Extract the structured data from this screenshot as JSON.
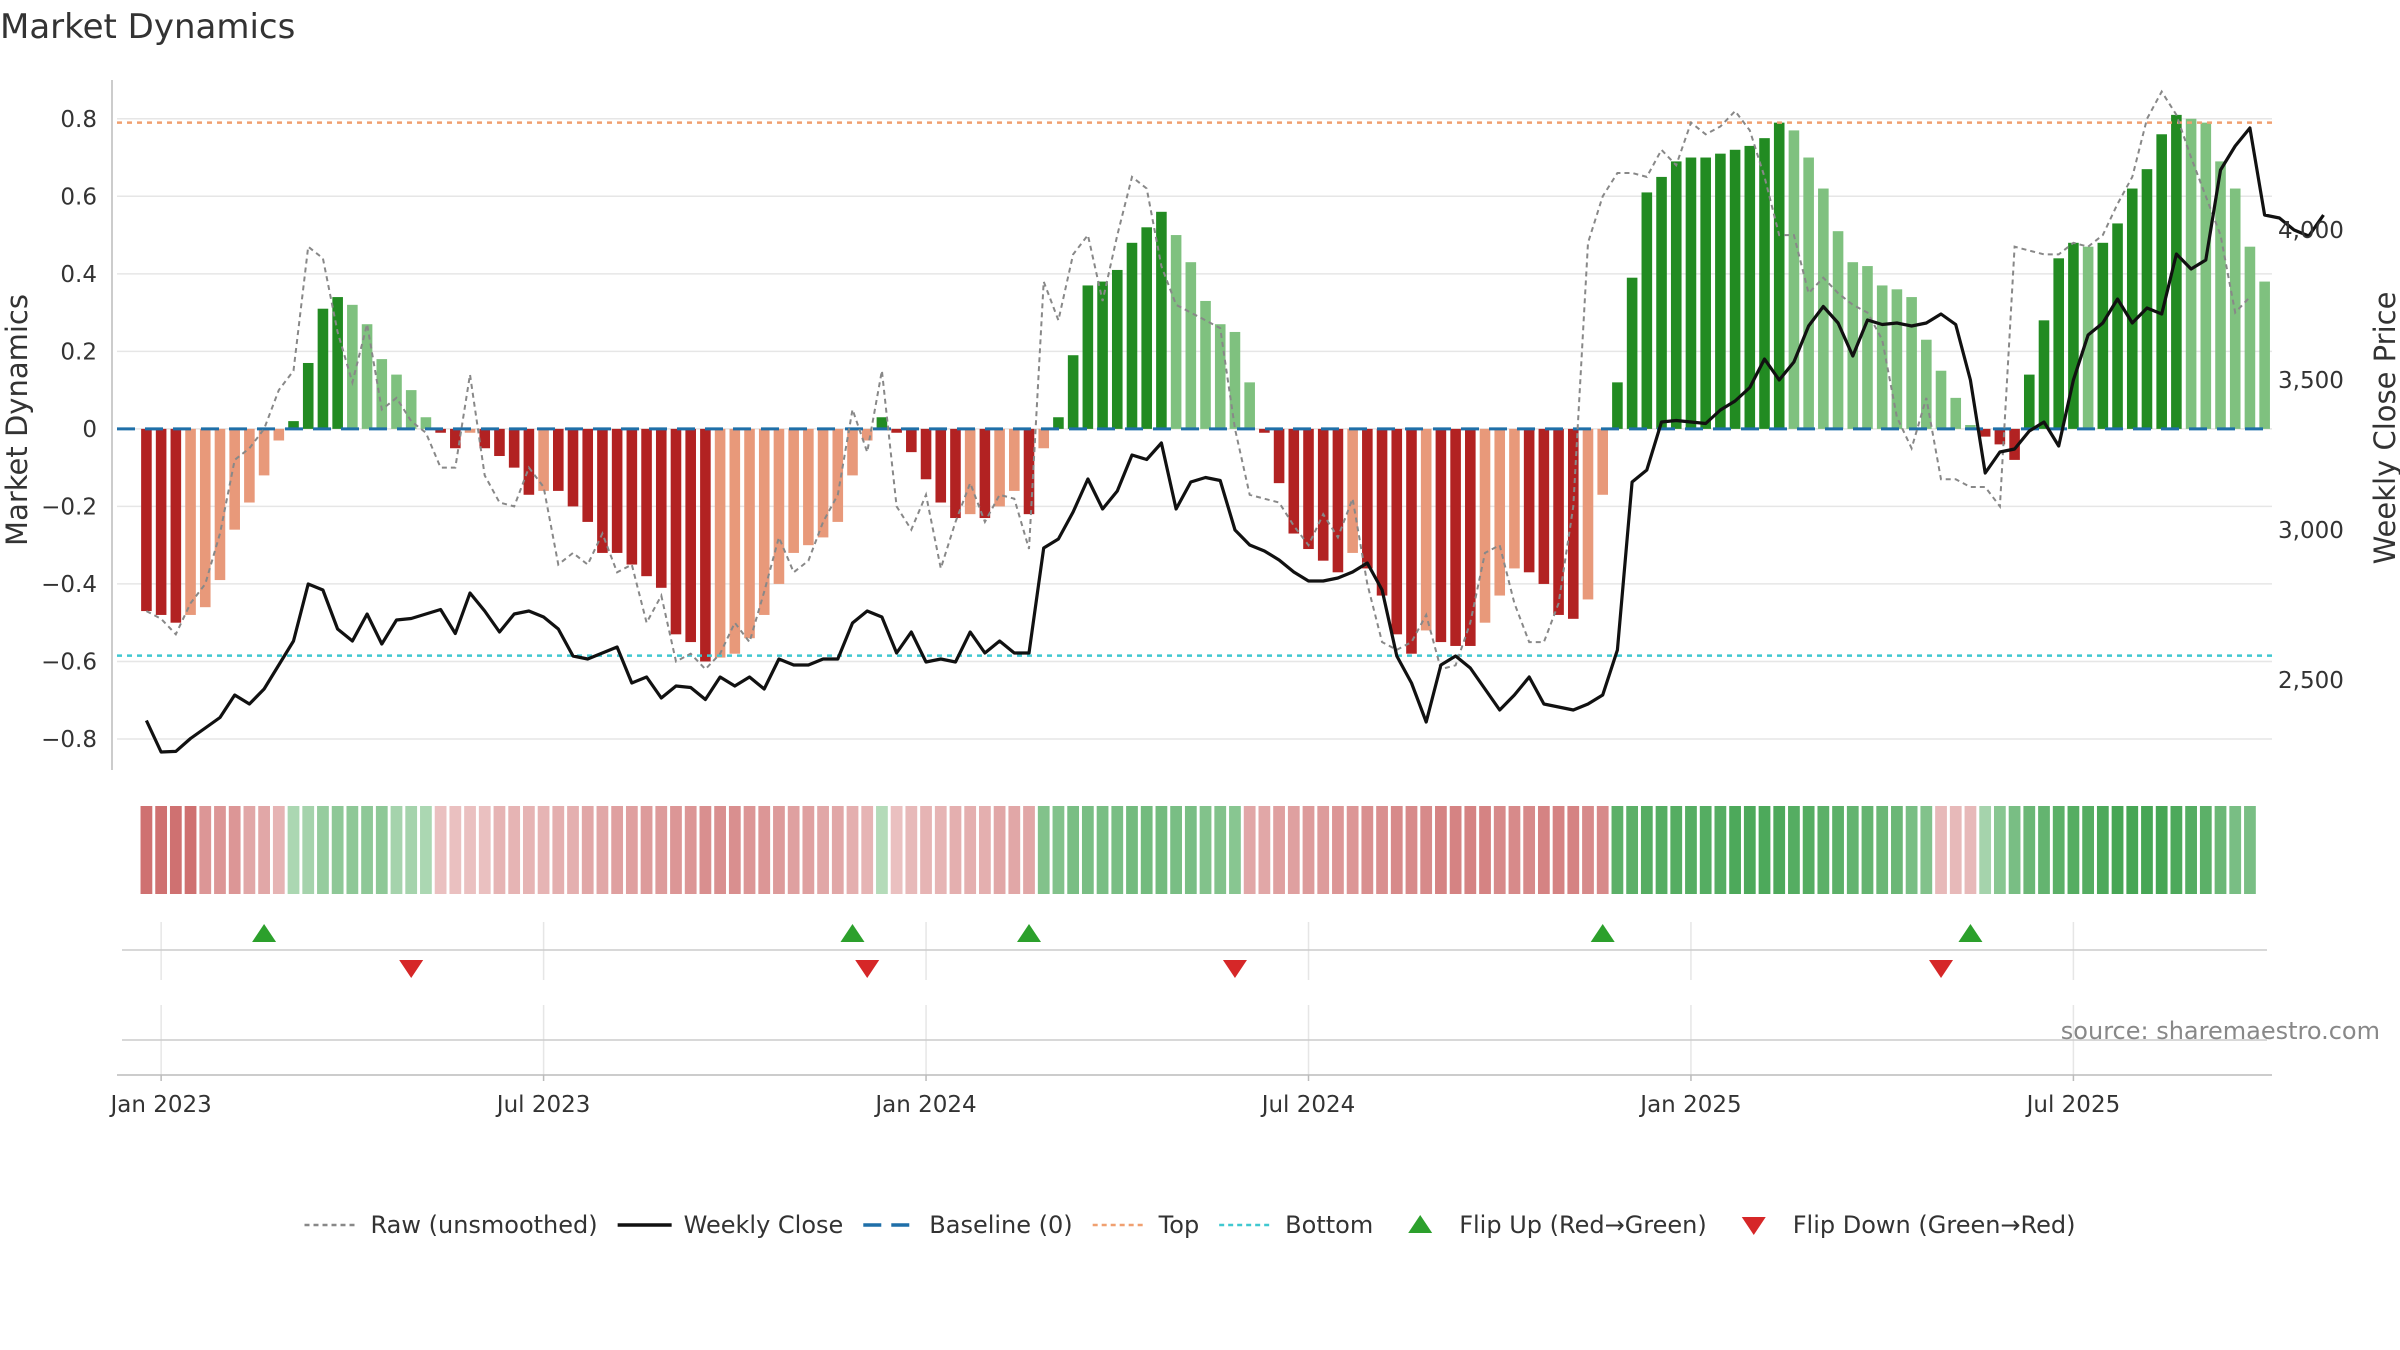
{
  "chart_data": {
    "type": "bar",
    "title": "Market Dynamics",
    "ylabel": "Market Dynamics",
    "y2label": "Weekly Close Price",
    "ylim": [
      -0.88,
      0.9
    ],
    "y2lim": [
      2200,
      4500
    ],
    "yticks": [
      -0.8,
      -0.6,
      -0.4,
      -0.2,
      0,
      0.2,
      0.4,
      0.6,
      0.8
    ],
    "ytick_labels": [
      "−0.8",
      "−0.6",
      "−0.4",
      "−0.2",
      "0",
      "0.2",
      "0.4",
      "0.6",
      "0.8"
    ],
    "y2ticks": [
      2500,
      3000,
      3500,
      4000
    ],
    "y2tick_labels": [
      "2,500",
      "3,000",
      "3,500",
      "4,000"
    ],
    "x_start_week": -2,
    "x_end_week": 144.5,
    "xticks": [
      {
        "label": "Jan 2023",
        "week": 1
      },
      {
        "label": "Jul 2023",
        "week": 27
      },
      {
        "label": "Jan 2024",
        "week": 53
      },
      {
        "label": "Jul 2024",
        "week": 79
      },
      {
        "label": "Jan 2025",
        "week": 105
      },
      {
        "label": "Jul 2025",
        "week": 131
      }
    ],
    "top_level": 0.79,
    "bottom_level": -0.585,
    "baseline": 0,
    "values": [
      -0.47,
      -0.48,
      -0.5,
      -0.48,
      -0.46,
      -0.39,
      -0.26,
      -0.19,
      -0.12,
      -0.03,
      0.02,
      0.17,
      0.31,
      0.34,
      0.32,
      0.27,
      0.18,
      0.14,
      0.1,
      0.03,
      -0.01,
      -0.05,
      -0.01,
      -0.05,
      -0.07,
      -0.1,
      -0.17,
      -0.16,
      -0.16,
      -0.2,
      -0.24,
      -0.32,
      -0.32,
      -0.35,
      -0.38,
      -0.41,
      -0.53,
      -0.55,
      -0.6,
      -0.59,
      -0.58,
      -0.54,
      -0.48,
      -0.4,
      -0.32,
      -0.3,
      -0.28,
      -0.24,
      -0.12,
      -0.03,
      0.03,
      -0.01,
      -0.06,
      -0.13,
      -0.19,
      -0.23,
      -0.22,
      -0.23,
      -0.2,
      -0.16,
      -0.22,
      -0.05,
      0.03,
      0.19,
      0.37,
      0.38,
      0.41,
      0.48,
      0.52,
      0.56,
      0.5,
      0.43,
      0.33,
      0.27,
      0.25,
      0.12,
      -0.01,
      -0.14,
      -0.27,
      -0.31,
      -0.34,
      -0.37,
      -0.32,
      -0.36,
      -0.43,
      -0.53,
      -0.58,
      -0.52,
      -0.55,
      -0.56,
      -0.56,
      -0.5,
      -0.43,
      -0.36,
      -0.37,
      -0.4,
      -0.48,
      -0.49,
      -0.44,
      -0.17,
      0.12,
      0.39,
      0.61,
      0.65,
      0.69,
      0.7,
      0.7,
      0.71,
      0.72,
      0.73,
      0.75,
      0.79,
      0.77,
      0.7,
      0.62,
      0.51,
      0.43,
      0.42,
      0.37,
      0.36,
      0.34,
      0.23,
      0.15,
      0.08,
      0.01,
      -0.02,
      -0.04,
      -0.08,
      0.14,
      0.28,
      0.44,
      0.48,
      0.47,
      0.48,
      0.53,
      0.62,
      0.67,
      0.76,
      0.81,
      0.8,
      0.79,
      0.69,
      0.62,
      0.47,
      0.38
    ],
    "raw": [
      -0.47,
      -0.49,
      -0.53,
      -0.45,
      -0.4,
      -0.27,
      -0.08,
      -0.05,
      0.0,
      0.1,
      0.15,
      0.47,
      0.44,
      0.25,
      0.12,
      0.27,
      0.05,
      0.08,
      0.02,
      -0.01,
      -0.1,
      -0.1,
      0.14,
      -0.12,
      -0.19,
      -0.2,
      -0.1,
      -0.15,
      -0.35,
      -0.32,
      -0.35,
      -0.27,
      -0.37,
      -0.35,
      -0.5,
      -0.43,
      -0.6,
      -0.58,
      -0.62,
      -0.58,
      -0.5,
      -0.55,
      -0.42,
      -0.28,
      -0.37,
      -0.34,
      -0.24,
      -0.17,
      0.05,
      -0.06,
      0.15,
      -0.2,
      -0.26,
      -0.17,
      -0.36,
      -0.24,
      -0.14,
      -0.24,
      -0.17,
      -0.18,
      -0.31,
      0.38,
      0.28,
      0.45,
      0.5,
      0.33,
      0.5,
      0.65,
      0.62,
      0.42,
      0.32,
      0.3,
      0.28,
      0.26,
      0.0,
      -0.17,
      -0.18,
      -0.19,
      -0.25,
      -0.3,
      -0.22,
      -0.28,
      -0.18,
      -0.4,
      -0.55,
      -0.57,
      -0.55,
      -0.48,
      -0.62,
      -0.61,
      -0.5,
      -0.32,
      -0.3,
      -0.45,
      -0.55,
      -0.55,
      -0.45,
      -0.2,
      0.48,
      0.6,
      0.66,
      0.66,
      0.65,
      0.72,
      0.68,
      0.79,
      0.76,
      0.78,
      0.82,
      0.77,
      0.65,
      0.5,
      0.5,
      0.35,
      0.39,
      0.35,
      0.32,
      0.3,
      0.23,
      0.03,
      -0.05,
      0.08,
      -0.13,
      -0.13,
      -0.15,
      -0.15,
      -0.2,
      0.47,
      0.46,
      0.45,
      0.45,
      0.48,
      0.47,
      0.5,
      0.58,
      0.65,
      0.8,
      0.87,
      0.81,
      0.7,
      0.6,
      0.5,
      0.3,
      0.34
    ],
    "weekly_close": [
      2365,
      2260,
      2262,
      2305,
      2340,
      2375,
      2450,
      2420,
      2470,
      2550,
      2630,
      2820,
      2800,
      2670,
      2630,
      2720,
      2620,
      2700,
      2705,
      2720,
      2735,
      2655,
      2790,
      2730,
      2660,
      2720,
      2730,
      2710,
      2670,
      2580,
      2570,
      2590,
      2610,
      2490,
      2510,
      2440,
      2480,
      2475,
      2435,
      2510,
      2480,
      2510,
      2470,
      2570,
      2550,
      2550,
      2570,
      2570,
      2690,
      2730,
      2710,
      2590,
      2660,
      2560,
      2570,
      2560,
      2660,
      2590,
      2630,
      2590,
      2590,
      2940,
      2970,
      3060,
      3170,
      3070,
      3130,
      3250,
      3235,
      3290,
      3070,
      3160,
      3175,
      3165,
      3000,
      2950,
      2930,
      2900,
      2860,
      2830,
      2830,
      2840,
      2860,
      2890,
      2800,
      2580,
      2490,
      2360,
      2550,
      2580,
      2540,
      2470,
      2400,
      2450,
      2510,
      2420,
      2410,
      2400,
      2420,
      2450,
      2600,
      3160,
      3200,
      3360,
      3365,
      3360,
      3355,
      3400,
      3430,
      3475,
      3570,
      3500,
      3560,
      3680,
      3745,
      3690,
      3580,
      3700,
      3685,
      3690,
      3680,
      3690,
      3720,
      3685,
      3500,
      3190,
      3260,
      3270,
      3330,
      3360,
      3280,
      3500,
      3650,
      3690,
      3770,
      3690,
      3740,
      3720,
      3920,
      3870,
      3900,
      4200,
      4280,
      4340,
      4050,
      4040,
      4000,
      3980,
      4050
    ],
    "ribbon": [
      -0.85,
      -0.85,
      -0.85,
      -0.85,
      -0.55,
      -0.55,
      -0.55,
      -0.4,
      -0.4,
      -0.3,
      0.25,
      0.3,
      0.4,
      0.45,
      0.45,
      0.45,
      0.45,
      0.3,
      0.3,
      0.25,
      -0.2,
      -0.2,
      -0.2,
      -0.2,
      -0.3,
      -0.3,
      -0.3,
      -0.3,
      -0.35,
      -0.35,
      -0.4,
      -0.4,
      -0.45,
      -0.45,
      -0.5,
      -0.5,
      -0.55,
      -0.55,
      -0.6,
      -0.6,
      -0.6,
      -0.55,
      -0.55,
      -0.5,
      -0.45,
      -0.45,
      -0.4,
      -0.4,
      -0.35,
      -0.3,
      0.2,
      -0.2,
      -0.25,
      -0.3,
      -0.3,
      -0.35,
      -0.35,
      -0.35,
      -0.4,
      -0.4,
      -0.4,
      0.55,
      0.55,
      0.6,
      0.6,
      0.6,
      0.6,
      0.65,
      0.65,
      0.65,
      0.6,
      0.6,
      0.55,
      0.55,
      0.5,
      -0.4,
      -0.4,
      -0.45,
      -0.45,
      -0.5,
      -0.5,
      -0.55,
      -0.55,
      -0.6,
      -0.6,
      -0.65,
      -0.65,
      -0.65,
      -0.7,
      -0.7,
      -0.7,
      -0.7,
      -0.65,
      -0.65,
      -0.65,
      -0.7,
      -0.7,
      -0.7,
      -0.65,
      -0.65,
      0.8,
      0.8,
      0.85,
      0.85,
      0.85,
      0.85,
      0.85,
      0.85,
      0.9,
      0.9,
      0.9,
      0.9,
      0.85,
      0.85,
      0.8,
      0.8,
      0.75,
      0.75,
      0.7,
      0.7,
      0.6,
      0.55,
      -0.25,
      -0.25,
      -0.25,
      0.3,
      0.5,
      0.6,
      0.7,
      0.75,
      0.8,
      0.85,
      0.85,
      0.9,
      0.95,
      0.95,
      0.95,
      0.95,
      0.9,
      0.85,
      0.8,
      0.7,
      0.6,
      0.6
    ],
    "flip_up_weeks": [
      8,
      48,
      60,
      99,
      124
    ],
    "flip_down_weeks": [
      18,
      49,
      74,
      122
    ],
    "colors": {
      "strong_red": "#b22222",
      "light_red": "#e8997a",
      "strong_green": "#228b22",
      "light_green": "#7fc17f",
      "top": "#f0a070",
      "bottom": "#40c8d0",
      "baseline": "#1f6fa8",
      "raw": "#888888",
      "close": "#111111",
      "flip_up": "#2ca02c",
      "flip_down": "#d62728",
      "grid": "#e6e6e6",
      "axis": "#bbbbbb"
    },
    "legend": [
      {
        "label": "Raw (unsmoothed)",
        "kind": "dotted-line",
        "color": "#888888"
      },
      {
        "label": "Weekly Close",
        "kind": "solid-line",
        "color": "#111111"
      },
      {
        "label": "Baseline (0)",
        "kind": "dashed-line",
        "color": "#1f6fa8"
      },
      {
        "label": "Top",
        "kind": "dotted-line",
        "color": "#f0a070"
      },
      {
        "label": "Bottom",
        "kind": "dotted-line",
        "color": "#40c8d0"
      },
      {
        "label": "Flip Up (Red→Green)",
        "kind": "triangle-up",
        "color": "#2ca02c"
      },
      {
        "label": "Flip Down (Green→Red)",
        "kind": "triangle-down",
        "color": "#d62728"
      }
    ],
    "source": "source: sharemaestro.com"
  }
}
